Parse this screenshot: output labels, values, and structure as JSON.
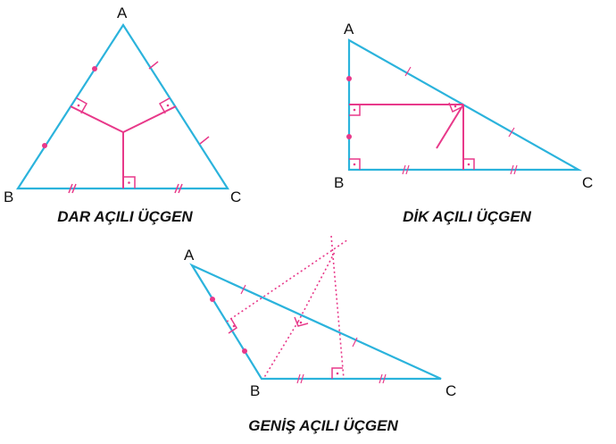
{
  "colors": {
    "triangle": "#2bb3dc",
    "construction": "#e8398a",
    "text": "#111111"
  },
  "triangles": {
    "acute": {
      "caption": "DAR AÇILI ÜÇGEN",
      "vertices": {
        "a": "A",
        "b": "B",
        "c": "C"
      }
    },
    "right": {
      "caption": "DİK AÇILI ÜÇGEN",
      "vertices": {
        "a": "A",
        "b": "B",
        "c": "C"
      }
    },
    "obtuse": {
      "caption": "GENİŞ AÇILI ÜÇGEN",
      "vertices": {
        "a": "A",
        "b": "B",
        "c": "C"
      }
    }
  }
}
